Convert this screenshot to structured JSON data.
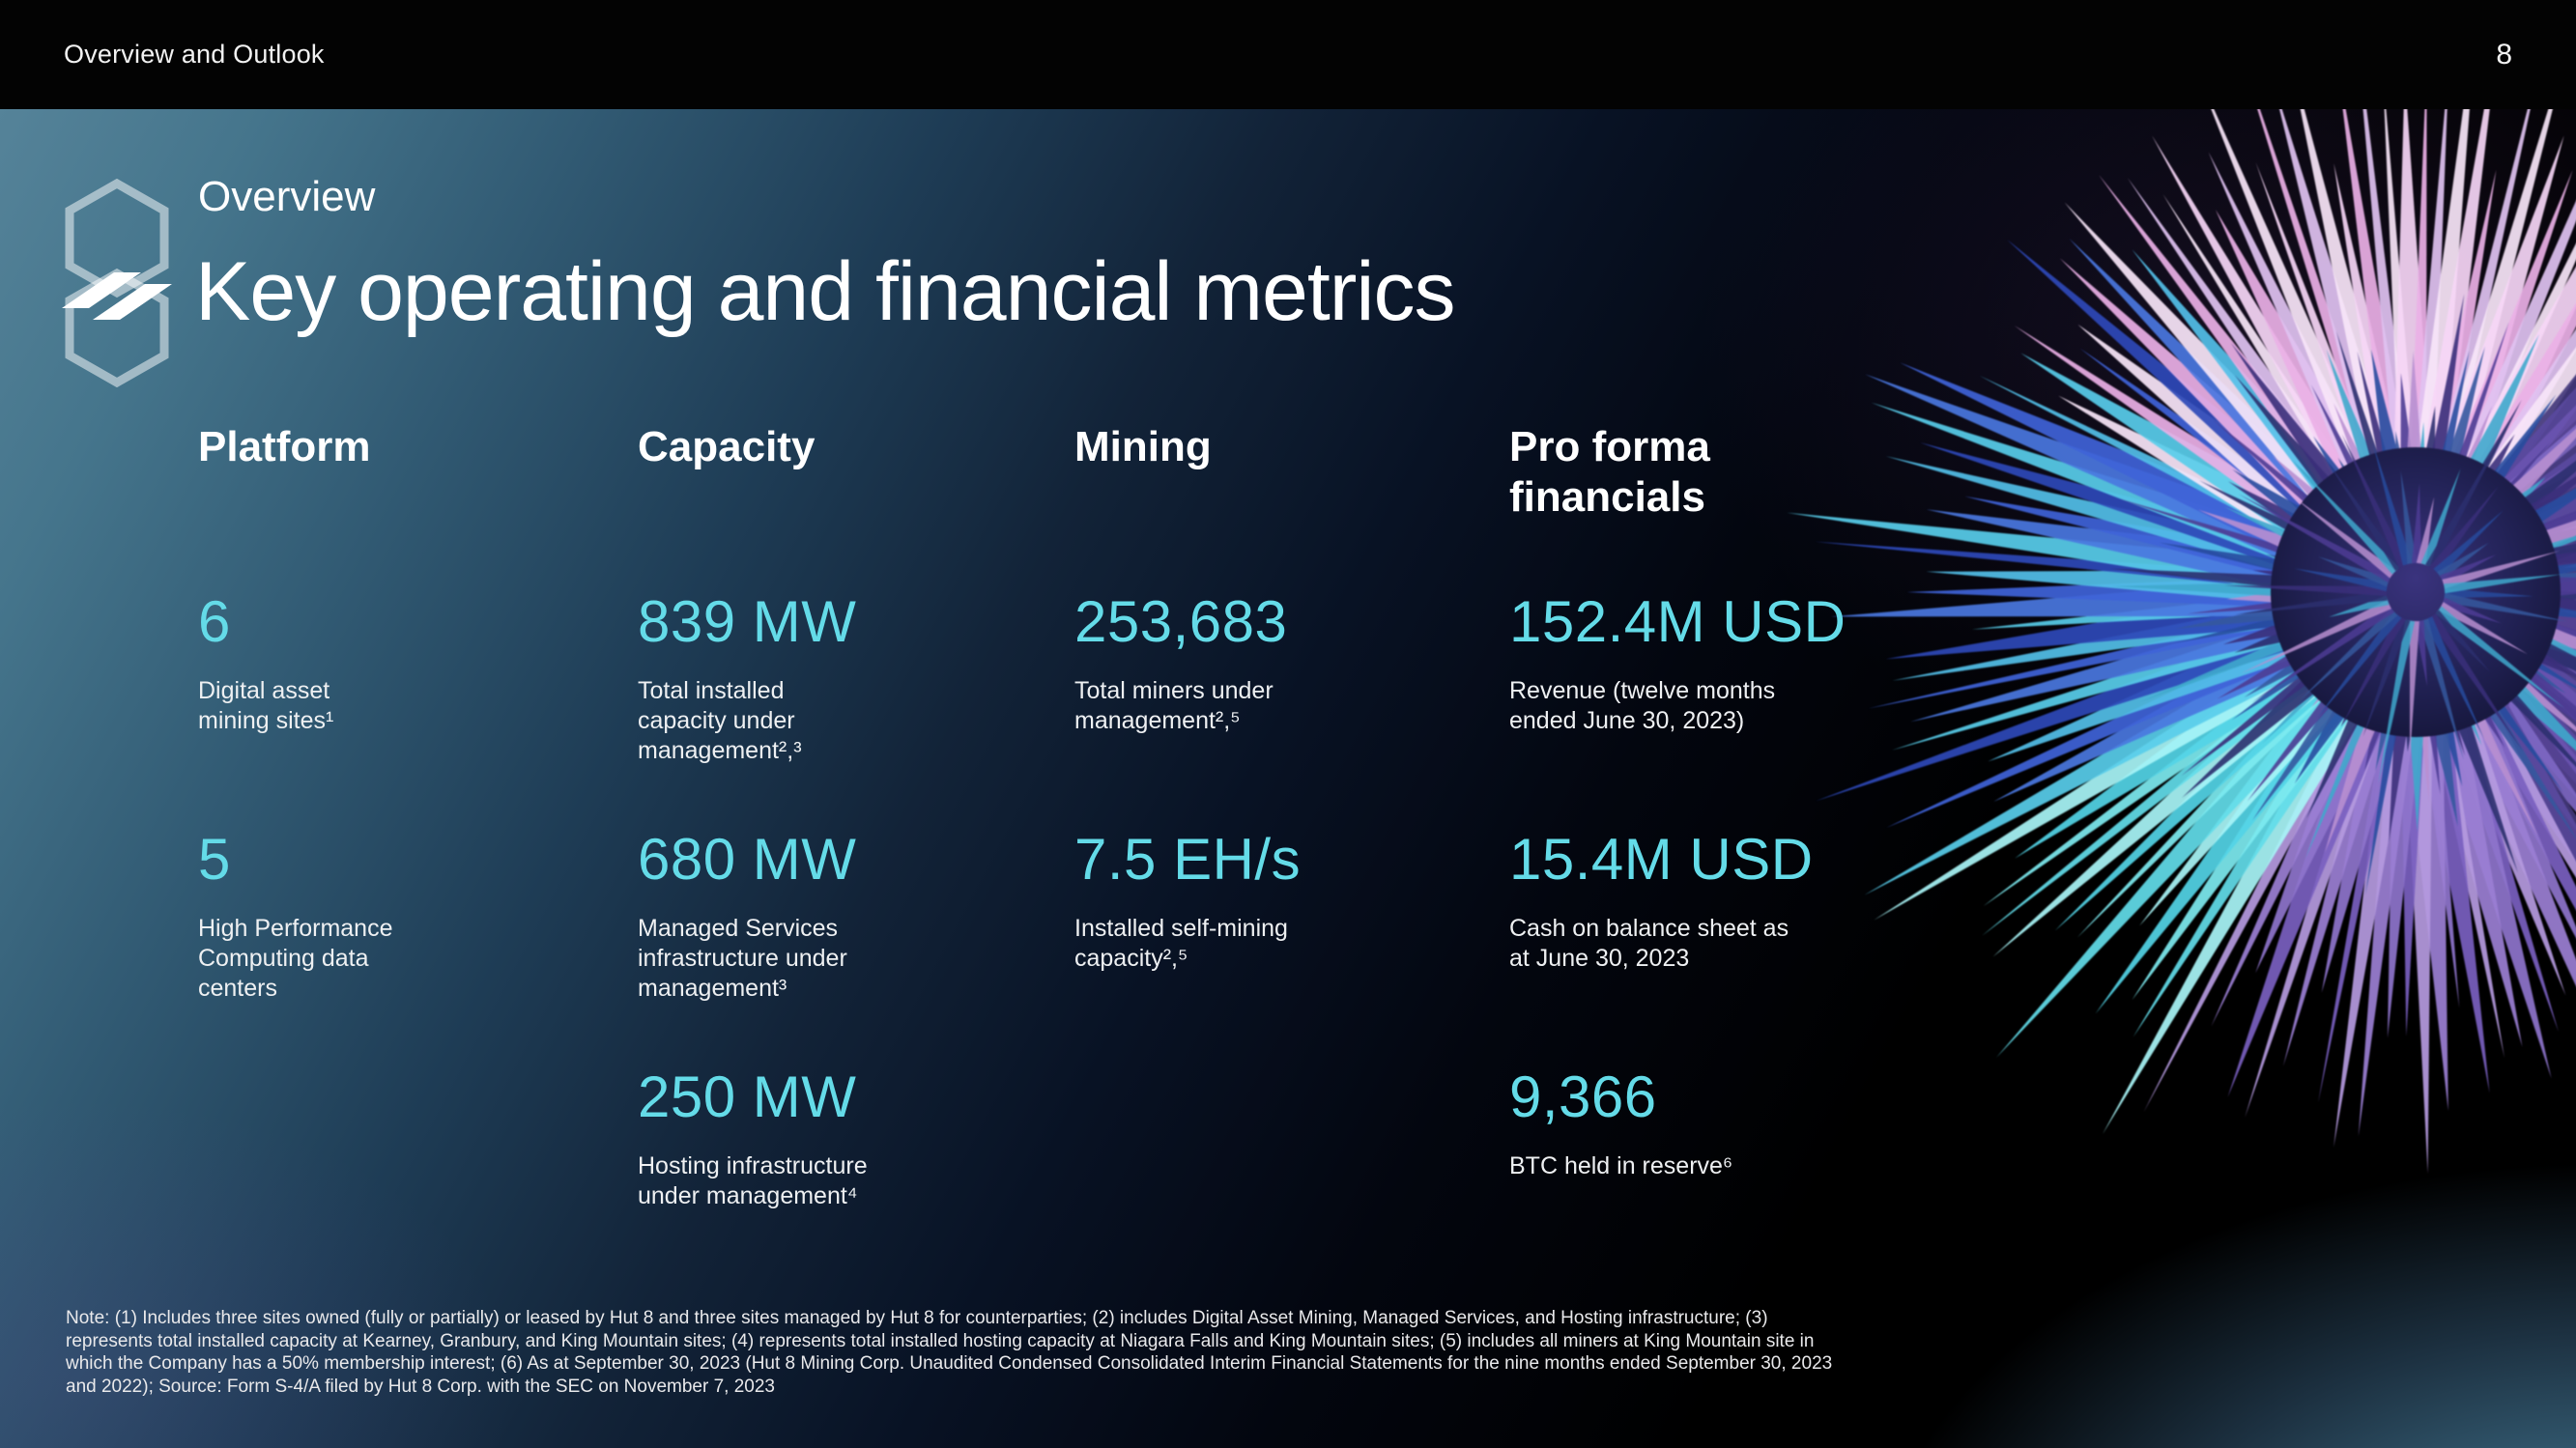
{
  "top_bar": {
    "title": "Overview and Outlook",
    "page_number": "8"
  },
  "slide": {
    "eyebrow": "Overview",
    "title": "Key operating and financial metrics",
    "columns": [
      {
        "header": "Platform",
        "metrics": [
          {
            "value": "6",
            "label": "Digital asset mining sites¹"
          },
          {
            "value": "5",
            "label": "High Performance Computing data centers"
          }
        ]
      },
      {
        "header": "Capacity",
        "metrics": [
          {
            "value": "839 MW",
            "label": "Total installed capacity under management²,³"
          },
          {
            "value": "680 MW",
            "label": "Managed Services infrastructure under management³"
          },
          {
            "value": "250 MW",
            "label": "Hosting infrastructure under management⁴"
          }
        ]
      },
      {
        "header": "Mining",
        "metrics": [
          {
            "value": "253,683",
            "label": "Total miners under management²,⁵"
          },
          {
            "value": "7.5 EH/s",
            "label": "Installed self-mining capacity²,⁵"
          }
        ]
      },
      {
        "header": "Pro forma financials",
        "metrics": [
          {
            "value": "152.4M USD",
            "label": "Revenue (twelve months ended June 30, 2023)"
          },
          {
            "value": "15.4M USD",
            "label": "Cash on balance sheet as at June 30, 2023"
          },
          {
            "value": "9,366",
            "label": "BTC held in reserve⁶"
          }
        ]
      }
    ],
    "note": "Note: (1) Includes three sites owned (fully or partially) or leased by Hut 8 and three sites managed by Hut 8 for counterparties; (2) includes Digital Asset Mining, Managed Services, and Hosting infrastructure; (3) represents total installed capacity at Kearney, Granbury, and King Mountain sites; (4) represents total installed hosting capacity at Niagara Falls and King Mountain sites; (5) includes all miners at King Mountain site in which the Company has a 50% membership interest; (6) As at September 30, 2023 (Hut 8 Mining Corp. Unaudited Condensed Consolidated Interim Financial Statements for the nine months ended September 30, 2023 and 2022); Source: Form S-4/A filed by Hut 8 Corp. with the SEC on November 7, 2023"
  },
  "colors": {
    "accent_cyan": "#64dbe8",
    "background_teal": "#558399",
    "bar_black": "#030303"
  }
}
